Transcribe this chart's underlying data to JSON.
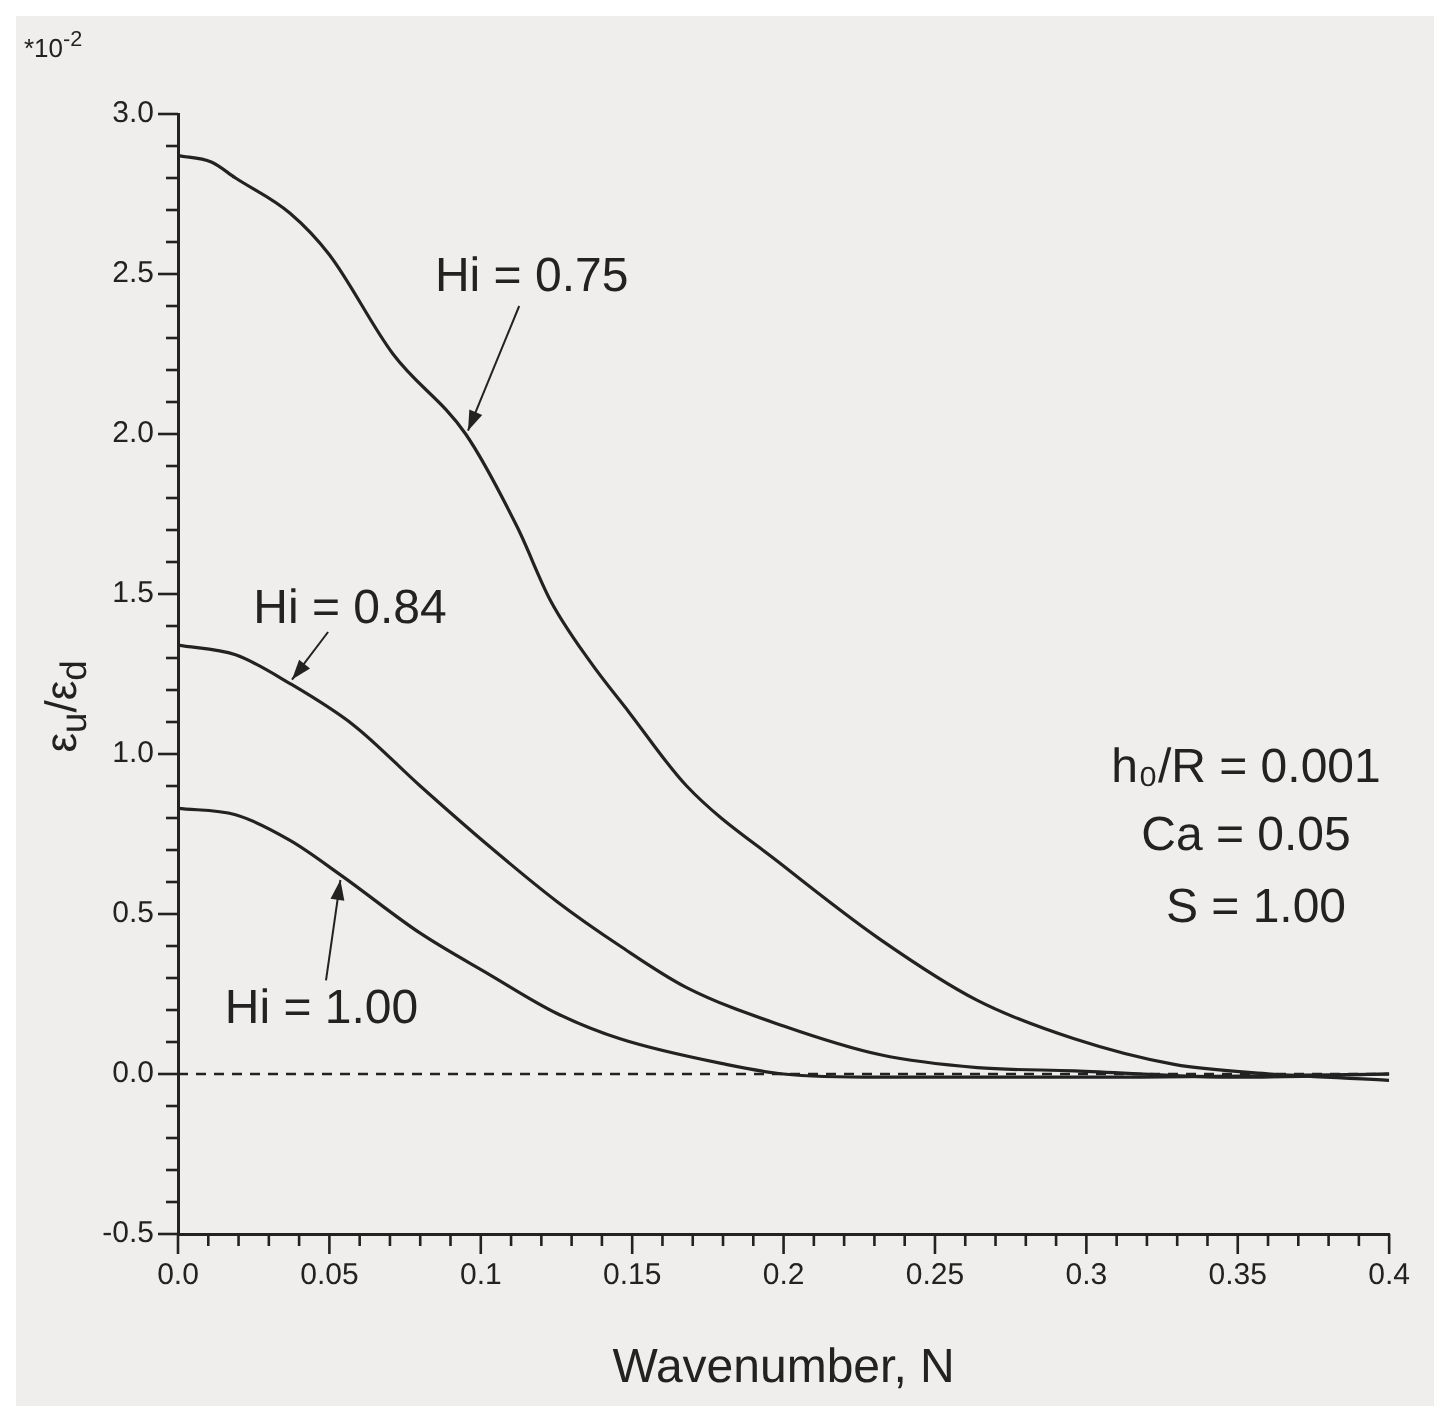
{
  "chart_data": {
    "type": "line",
    "xlabel": "Wavenumber, N",
    "ylabel": "ε$_{u}$/ε$_{d}$",
    "xlim": [
      0,
      0.4
    ],
    "ylim": [
      -0.5,
      3.0
    ],
    "xticks": [
      {
        "value": 0,
        "label": "0.0"
      },
      {
        "value": 0.01,
        "label": null
      },
      {
        "value": 0.02,
        "label": null
      },
      {
        "value": 0.03,
        "label": null
      },
      {
        "value": 0.04,
        "label": null
      },
      0.05,
      {
        "value": 0.06,
        "label": null
      },
      {
        "value": 0.07,
        "label": null
      },
      {
        "value": 0.08,
        "label": null
      },
      {
        "value": 0.09,
        "label": null
      },
      0.1,
      {
        "value": 0.11,
        "label": null
      },
      {
        "value": 0.12,
        "label": null
      },
      {
        "value": 0.13,
        "label": null
      },
      {
        "value": 0.14,
        "label": null
      },
      0.15,
      {
        "value": 0.16,
        "label": null
      },
      {
        "value": 0.17,
        "label": null
      },
      {
        "value": 0.18,
        "label": null
      },
      {
        "value": 0.19,
        "label": null
      },
      0.2,
      {
        "value": 0.21,
        "label": null
      },
      {
        "value": 0.22,
        "label": null
      },
      {
        "value": 0.23,
        "label": null
      },
      {
        "value": 0.24,
        "label": null
      },
      0.25,
      {
        "value": 0.26,
        "label": null
      },
      {
        "value": 0.27,
        "label": null
      },
      {
        "value": 0.28,
        "label": null
      },
      {
        "value": 0.29,
        "label": null
      },
      0.3,
      {
        "value": 0.31,
        "label": null
      },
      {
        "value": 0.32,
        "label": null
      },
      {
        "value": 0.33,
        "label": null
      },
      {
        "value": 0.34,
        "label": null
      },
      0.35,
      {
        "value": 0.36,
        "label": null
      },
      {
        "value": 0.37,
        "label": null
      },
      {
        "value": 0.38,
        "label": null
      },
      {
        "value": 0.39,
        "label": null
      },
      0.4
    ],
    "yticks": [
      -0.5,
      {
        "value": -0.4,
        "label": null
      },
      {
        "value": -0.3,
        "label": null
      },
      {
        "value": -0.2,
        "label": null
      },
      {
        "value": -0.1,
        "label": null
      },
      {
        "value": 0,
        "label": "0.0"
      },
      {
        "value": 0.1,
        "label": null
      },
      {
        "value": 0.2,
        "label": null
      },
      {
        "value": 0.3,
        "label": null
      },
      {
        "value": 0.4,
        "label": null
      },
      0.5,
      {
        "value": 0.6,
        "label": null
      },
      {
        "value": 0.7,
        "label": null
      },
      {
        "value": 0.8,
        "label": null
      },
      {
        "value": 0.9,
        "label": null
      },
      {
        "value": 1,
        "label": "1.0"
      },
      {
        "value": 1.1,
        "label": null
      },
      {
        "value": 1.2,
        "label": null
      },
      {
        "value": 1.3,
        "label": null
      },
      {
        "value": 1.4,
        "label": null
      },
      1.5,
      {
        "value": 1.6,
        "label": null
      },
      {
        "value": 1.7,
        "label": null
      },
      {
        "value": 1.8,
        "label": null
      },
      {
        "value": 1.9,
        "label": null
      },
      {
        "value": 2,
        "label": "2.0"
      },
      {
        "value": 2.1,
        "label": null
      },
      {
        "value": 2.2,
        "label": null
      },
      {
        "value": 2.3,
        "label": null
      },
      {
        "value": 2.4,
        "label": null
      },
      2.5,
      {
        "value": 2.6,
        "label": null
      },
      {
        "value": 2.7,
        "label": null
      },
      {
        "value": 2.8,
        "label": null
      },
      {
        "value": 2.9,
        "label": null
      },
      {
        "value": 3,
        "label": "3.0"
      }
    ],
    "marker": "none",
    "line_style": "solid",
    "ref_lines": [
      {
        "axis": "y",
        "value": 0,
        "line_style": "dashed",
        "color": "#222222"
      }
    ],
    "annotations": [
      "*10$^{-2}$",
      "h₀/R = 0.001",
      "Ca = 0.05",
      "S = 1.00"
    ],
    "series": [
      {
        "name": "Hi = 0.75",
        "color": "#222222",
        "x": [
          0,
          0.011,
          0.019,
          0.037,
          0.05,
          0.071,
          0.095,
          0.112,
          0.123,
          0.136,
          0.149,
          0.168,
          0.2,
          0.232,
          0.264,
          0.296,
          0.329,
          0.361,
          0.4
        ],
        "values": [
          2.87,
          2.85,
          2.8,
          2.69,
          2.56,
          2.25,
          2.0,
          1.71,
          1.48,
          1.29,
          1.13,
          0.9,
          0.65,
          0.42,
          0.23,
          0.11,
          0.03,
          0.0,
          -0.02
        ]
      },
      {
        "name": "Hi = 0.84",
        "color": "#222222",
        "x": [
          0,
          0.019,
          0.037,
          0.058,
          0.08,
          0.103,
          0.125,
          0.146,
          0.168,
          0.2,
          0.232,
          0.264,
          0.296,
          0.35,
          0.4
        ],
        "values": [
          1.34,
          1.31,
          1.22,
          1.09,
          0.9,
          0.71,
          0.54,
          0.4,
          0.27,
          0.15,
          0.06,
          0.02,
          0.01,
          -0.01,
          0.0
        ]
      },
      {
        "name": "Hi = 1.00",
        "color": "#222222",
        "x": [
          0,
          0.019,
          0.037,
          0.054,
          0.08,
          0.103,
          0.125,
          0.146,
          0.181,
          0.2,
          0.232,
          0.3,
          0.4
        ],
        "values": [
          0.83,
          0.81,
          0.73,
          0.62,
          0.44,
          0.31,
          0.19,
          0.11,
          0.03,
          0.0,
          -0.01,
          -0.01,
          0.0
        ]
      }
    ]
  }
}
